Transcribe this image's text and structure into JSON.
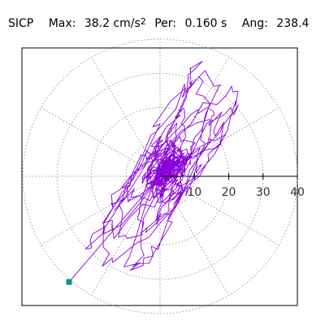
{
  "header": {
    "station": "SICP",
    "max_label": "Max:",
    "max_value": "38.2 cm/s",
    "max_unit_exp": "2",
    "per_label": "Per:",
    "per_value": "0.160 s",
    "ang_label": "Ang:",
    "ang_value": "238.4"
  },
  "colors": {
    "trace": "#8a00d8",
    "marker": "#009a8a",
    "grid": "#888888",
    "frame": "#000000"
  },
  "chart_data": {
    "type": "polar-trajectory",
    "r_max": 40,
    "radial_ticks": [
      10,
      20,
      30,
      40
    ],
    "angular_grid_step_deg": 30,
    "max_amplitude": 38.2,
    "max_angle_deg": 238.4,
    "trace_end": {
      "x": -26.5,
      "y": -30.8
    }
  }
}
